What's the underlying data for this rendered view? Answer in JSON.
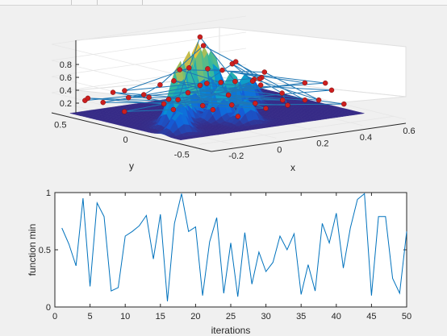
{
  "window": {
    "title": ""
  },
  "chart_data": [
    {
      "type": "surface-3d-with-path",
      "title": "",
      "xlabel": "x",
      "ylabel": "y",
      "zlabel": "",
      "xlim": [
        -0.3,
        0.6
      ],
      "ylim": [
        -0.6,
        0.7
      ],
      "zlim": [
        0,
        0.9
      ],
      "x_ticks": [
        "-0.2",
        "0",
        "0.2",
        "0.4",
        "0.6"
      ],
      "y_ticks": [
        "0.5",
        "0",
        "-0.5"
      ],
      "z_ticks": [
        "0.8",
        "0.6",
        "0.4",
        "0.2"
      ],
      "grid": true,
      "colormap": "parula",
      "marker_color": "#cc1f1f",
      "line_color": "#1f77b4"
    },
    {
      "type": "line",
      "title": "",
      "xlabel": "iterations",
      "ylabel": "function min",
      "xlim": [
        0,
        50
      ],
      "ylim": [
        0,
        1
      ],
      "x_ticks": [
        "0",
        "5",
        "10",
        "15",
        "20",
        "25",
        "30",
        "35",
        "40",
        "45",
        "50"
      ],
      "y_ticks": [
        "0",
        "0.5",
        "1"
      ],
      "line_color": "#0072bd",
      "x": [
        1,
        2,
        3,
        4,
        5,
        6,
        7,
        8,
        9,
        10,
        11,
        12,
        13,
        14,
        15,
        16,
        17,
        18,
        19,
        20,
        21,
        22,
        23,
        24,
        25,
        26,
        27,
        28,
        29,
        30,
        31,
        32,
        33,
        34,
        35,
        36,
        37,
        38,
        39,
        40,
        41,
        42,
        43,
        44,
        45,
        46,
        47,
        48,
        49,
        50
      ],
      "y": [
        0.69,
        0.55,
        0.36,
        0.95,
        0.18,
        0.91,
        0.79,
        0.14,
        0.17,
        0.62,
        0.66,
        0.71,
        0.8,
        0.42,
        0.81,
        0.05,
        0.73,
        0.99,
        0.66,
        0.7,
        0.1,
        0.57,
        0.78,
        0.12,
        0.56,
        0.09,
        0.65,
        0.2,
        0.48,
        0.31,
        0.39,
        0.62,
        0.5,
        0.64,
        0.11,
        0.37,
        0.14,
        0.73,
        0.56,
        0.82,
        0.34,
        0.69,
        0.94,
        0.99,
        0.1,
        0.79,
        0.79,
        0.25,
        0.12,
        0.66
      ]
    }
  ]
}
